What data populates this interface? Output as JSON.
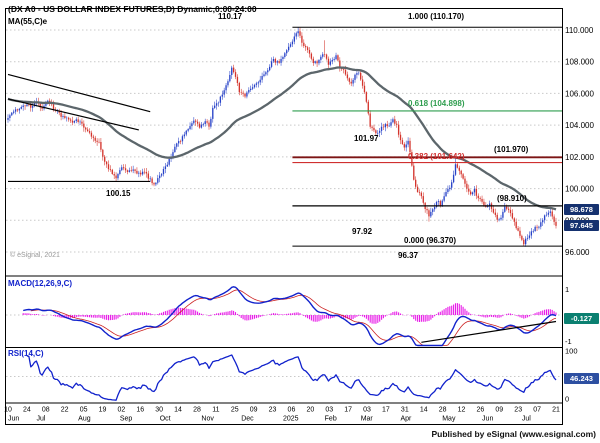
{
  "header": {
    "title": "(DX A0 - US DOLLAR INDEX FUTURES,D) Dynamic,0:00-24:00",
    "study_label": "MA(55,C)e"
  },
  "watermark": "© eSignal, 2021",
  "footer": "Published by eSignal (www.esignal.com)",
  "price_axis": {
    "tick_labels": [
      "110.000",
      "108.000",
      "106.000",
      "104.000",
      "102.000",
      "100.000",
      "98.000",
      "96.000"
    ],
    "tick_values": [
      110,
      108,
      106,
      104,
      102,
      100,
      98,
      96
    ]
  },
  "badges": {
    "ma_value": "98.678",
    "last_price": "97.645",
    "macd_value": "-0.127",
    "rsi_value": "46.243"
  },
  "annotations": {
    "peak_price": "110.17",
    "sep_low_price": "100.15",
    "may_high_price": "101.97",
    "apr_low_price": "97.92",
    "jul_low_price": "96.37",
    "fib_1000": "1.000 (110.170)",
    "fib_0618": "0.618 (104.898)",
    "fib_0382": "0.382 (101.642)",
    "fib_0000": "0.000 (96.370)",
    "level_101970": "(101.970)",
    "level_98910": "(98.910)"
  },
  "macd_panel": {
    "label": "MACD(12,26,9,C)",
    "tick_labels": [
      "1",
      "0",
      "-1"
    ],
    "tick_values": [
      1,
      0,
      -1
    ]
  },
  "rsi_panel": {
    "label": "RSI(14,C)",
    "tick_labels": [
      "100",
      "0"
    ],
    "tick_values": [
      100,
      0
    ]
  },
  "date_axis": {
    "day_labels": [
      "10",
      "24",
      "08",
      "22",
      "05",
      "19",
      "02",
      "16",
      "30",
      "14",
      "28",
      "11",
      "25",
      "09",
      "23",
      "06",
      "20",
      "03",
      "17",
      "03",
      "17",
      "31",
      "14",
      "28",
      "12",
      "26",
      "09",
      "23",
      "07",
      "21"
    ],
    "month_labels": [
      {
        "label": "Jun",
        "bar": 0
      },
      {
        "label": "Jul",
        "bar": 15
      },
      {
        "label": "Aug",
        "bar": 37
      },
      {
        "label": "Sep",
        "bar": 59
      },
      {
        "label": "Oct",
        "bar": 80
      },
      {
        "label": "Nov",
        "bar": 102
      },
      {
        "label": "Dec",
        "bar": 123
      },
      {
        "label": "2025",
        "bar": 145
      },
      {
        "label": "Feb",
        "bar": 167
      },
      {
        "label": "Mar",
        "bar": 186
      },
      {
        "label": "Apr",
        "bar": 207
      },
      {
        "label": "May",
        "bar": 229
      },
      {
        "label": "Jun",
        "bar": 250
      },
      {
        "label": "Jul",
        "bar": 271
      }
    ]
  },
  "colors": {
    "up": "#2742c8",
    "down": "#d4342c",
    "ma": "#5c666b",
    "macd": "#1122cc",
    "signal": "#cc2222",
    "hist": "#e818e8",
    "rsi": "#1122cc",
    "grid": "#c9c9c9",
    "fib_black": "#000000",
    "fib_green": "#2f9e4f",
    "fib_red": "#d03030",
    "resistance": "#7d1515",
    "badge_price": "#15316f",
    "badge_macd": "#0b8071",
    "badge_rsi": "#2d4fa1"
  },
  "chart_data": {
    "type": "candlestick",
    "title": "DX A0 - US Dollar Index Futures, Daily",
    "session": "0:00-24:00",
    "x_range": "Jun 10 2024 - Jul 21 2025",
    "ylim": [
      94.5,
      111.4
    ],
    "bars": 290,
    "last_close": 97.645,
    "ma55_last": 98.678,
    "ma55_start": 105.7,
    "macd_last": -0.127,
    "rsi_last": 46.243,
    "fib_levels": {
      "1.000": 110.17,
      "0.618": 104.898,
      "0.382": 101.642,
      "0.000": 96.37
    },
    "horizontal_levels": {
      "resistance": 101.97,
      "support": 98.91
    },
    "swings": {
      "jan_peak": 110.17,
      "sep_low": 100.15,
      "may_high": 101.97,
      "apr_low": 97.92,
      "jul_low": 96.37
    },
    "level_lines": [
      {
        "price": 110.17,
        "color": "#000000",
        "width": 1,
        "start_bar": 150
      },
      {
        "price": 104.898,
        "color": "#2f9e4f",
        "width": 1.1,
        "start_bar": 150
      },
      {
        "price": 101.97,
        "color": "#7d1515",
        "width": 1.8,
        "start_bar": 150
      },
      {
        "price": 101.642,
        "color": "#d03030",
        "width": 1.1,
        "start_bar": 150
      },
      {
        "price": 98.91,
        "color": "#000000",
        "width": 1.3,
        "start_bar": 150
      },
      {
        "price": 96.37,
        "color": "#000000",
        "width": 1,
        "start_bar": 150
      }
    ],
    "left_lines": [
      {
        "b1": 0,
        "p1": 107.2,
        "b2": 75,
        "p2": 104.85
      },
      {
        "b1": 0,
        "p1": 105.65,
        "b2": 69,
        "p2": 103.7
      },
      {
        "b1": 0,
        "p1": 100.45,
        "b2": 75,
        "p2": 100.45
      }
    ],
    "macd_trendline": {
      "b1": 218,
      "v1": -1.05,
      "b2": 289,
      "v2": -0.25
    },
    "forced_extremes": {
      "jan_peak_bar": 153,
      "jan_peak": 110.17,
      "feb_spike_bar": 167,
      "feb_spike": 109.35,
      "sep_low_bar": 77,
      "sep_low": 100.15,
      "apr_low_bar": 222,
      "apr_low": 97.92,
      "may_high_bar": 236,
      "may_high": 101.97,
      "jul_low_bar": 272,
      "jul_low": 96.37
    },
    "close_waypoints": [
      [
        0,
        104.45
      ],
      [
        3,
        104.8
      ],
      [
        6,
        105.1
      ],
      [
        9,
        105.3
      ],
      [
        12,
        105.2
      ],
      [
        15,
        105.45
      ],
      [
        18,
        105.1
      ],
      [
        21,
        105.5
      ],
      [
        24,
        105.1
      ],
      [
        27,
        104.7
      ],
      [
        30,
        104.45
      ],
      [
        33,
        104.2
      ],
      [
        36,
        104.35
      ],
      [
        39,
        104.15
      ],
      [
        42,
        103.55
      ],
      [
        45,
        103.25
      ],
      [
        48,
        102.85
      ],
      [
        51,
        101.65
      ],
      [
        54,
        101.15
      ],
      [
        57,
        100.7
      ],
      [
        60,
        101.45
      ],
      [
        63,
        101.05
      ],
      [
        66,
        101.15
      ],
      [
        69,
        100.9
      ],
      [
        72,
        101.05
      ],
      [
        75,
        100.55
      ],
      [
        77,
        100.3
      ],
      [
        80,
        100.8
      ],
      [
        83,
        101.35
      ],
      [
        86,
        102.1
      ],
      [
        89,
        102.85
      ],
      [
        92,
        103.2
      ],
      [
        95,
        103.7
      ],
      [
        98,
        104.25
      ],
      [
        101,
        103.9
      ],
      [
        104,
        104.3
      ],
      [
        106,
        103.9
      ],
      [
        108,
        105.1
      ],
      [
        111,
        105.45
      ],
      [
        114,
        106.25
      ],
      [
        116,
        106.8
      ],
      [
        118,
        107.6
      ],
      [
        120,
        107.1
      ],
      [
        122,
        106.0
      ],
      [
        125,
        105.85
      ],
      [
        128,
        106.4
      ],
      [
        131,
        106.7
      ],
      [
        134,
        107.0
      ],
      [
        137,
        107.55
      ],
      [
        140,
        108.1
      ],
      [
        143,
        107.95
      ],
      [
        146,
        108.45
      ],
      [
        149,
        109.2
      ],
      [
        151,
        109.55
      ],
      [
        153,
        109.9
      ],
      [
        155,
        109.25
      ],
      [
        157,
        108.9
      ],
      [
        159,
        108.45
      ],
      [
        161,
        108.0
      ],
      [
        163,
        107.9
      ],
      [
        165,
        108.35
      ],
      [
        167,
        108.5
      ],
      [
        169,
        107.9
      ],
      [
        171,
        108.0
      ],
      [
        173,
        108.3
      ],
      [
        175,
        107.65
      ],
      [
        177,
        107.5
      ],
      [
        179,
        106.9
      ],
      [
        181,
        106.6
      ],
      [
        183,
        107.1
      ],
      [
        185,
        107.35
      ],
      [
        187,
        106.55
      ],
      [
        189,
        105.55
      ],
      [
        191,
        103.9
      ],
      [
        193,
        103.75
      ],
      [
        195,
        103.45
      ],
      [
        197,
        103.8
      ],
      [
        199,
        104.1
      ],
      [
        201,
        104.0
      ],
      [
        203,
        104.3
      ],
      [
        205,
        104.0
      ],
      [
        207,
        103.0
      ],
      [
        209,
        102.65
      ],
      [
        211,
        103.0
      ],
      [
        212,
        102.35
      ],
      [
        214,
        100.5
      ],
      [
        216,
        99.8
      ],
      [
        218,
        99.55
      ],
      [
        220,
        98.75
      ],
      [
        222,
        98.3
      ],
      [
        224,
        98.65
      ],
      [
        226,
        99.25
      ],
      [
        228,
        99.0
      ],
      [
        230,
        99.45
      ],
      [
        232,
        99.95
      ],
      [
        234,
        100.35
      ],
      [
        236,
        101.6
      ],
      [
        238,
        101.15
      ],
      [
        240,
        100.7
      ],
      [
        242,
        99.95
      ],
      [
        244,
        99.6
      ],
      [
        246,
        99.9
      ],
      [
        248,
        99.35
      ],
      [
        250,
        99.2
      ],
      [
        252,
        98.85
      ],
      [
        254,
        99.05
      ],
      [
        256,
        98.55
      ],
      [
        258,
        97.95
      ],
      [
        260,
        98.15
      ],
      [
        262,
        98.8
      ],
      [
        264,
        98.7
      ],
      [
        266,
        98.2
      ],
      [
        268,
        97.55
      ],
      [
        270,
        97.05
      ],
      [
        272,
        96.6
      ],
      [
        274,
        96.85
      ],
      [
        276,
        97.2
      ],
      [
        278,
        97.5
      ],
      [
        280,
        97.7
      ],
      [
        282,
        98.1
      ],
      [
        284,
        98.45
      ],
      [
        286,
        98.5
      ],
      [
        288,
        97.95
      ],
      [
        289,
        97.645
      ]
    ]
  }
}
